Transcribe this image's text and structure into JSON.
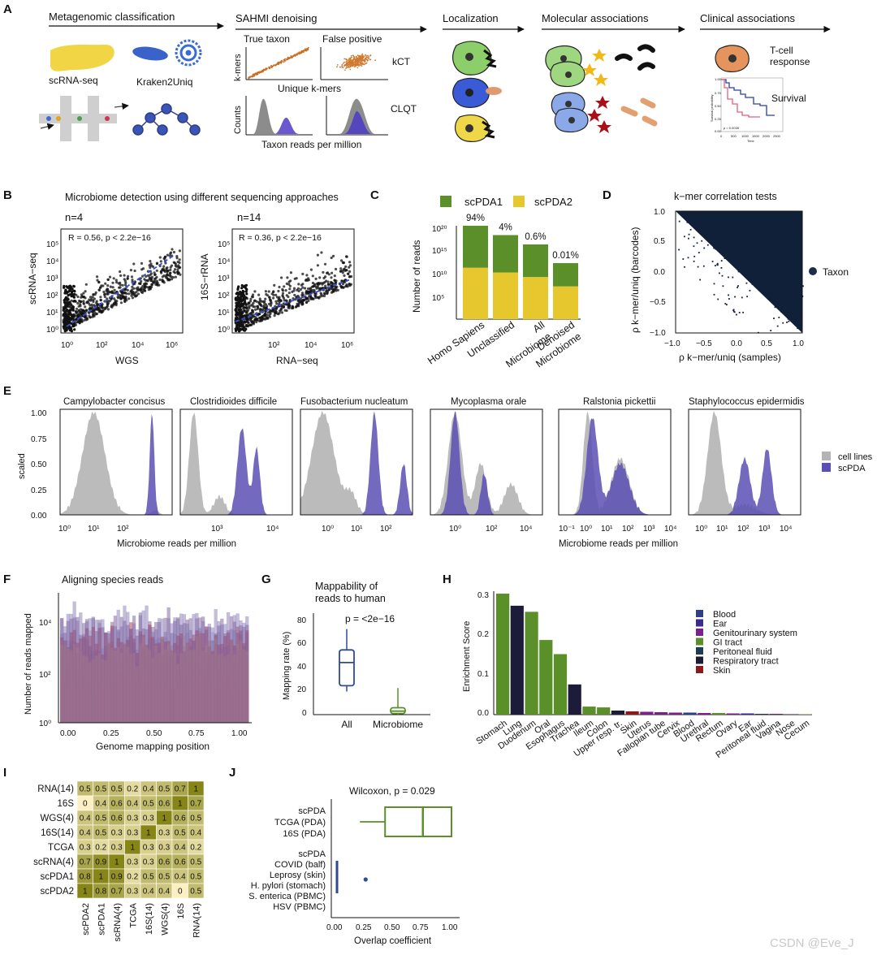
{
  "panel_a": {
    "letter": "A",
    "stages": [
      "Metagenomic classification",
      "SAHMI denoising",
      "Localization",
      "Molecular associations",
      "Clinical associations"
    ],
    "scrnaseq": "scRNA-seq",
    "kraken": "Kraken2Uniq",
    "true_taxon": "True taxon",
    "false_pos": "False positive",
    "kmers_axis": "k-mers",
    "unique_kmers": "Unique k-mers",
    "kct": "kCT",
    "counts_axis": "Counts",
    "taxon_rpm": "Taxon reads per million",
    "clqt": "CLQT",
    "tcell": "T-cell",
    "response": "response",
    "survival": "Survival",
    "km_ylabel": "Survival probability",
    "km_xlabel": "Time",
    "km_pvalue": "p = 0.0039",
    "km_ticks": [
      "0",
      "500",
      "1000",
      "1500",
      "2000",
      "2500"
    ],
    "km_yticks": [
      "0.00",
      "0.25",
      "0.50",
      "0.75",
      "1.00"
    ]
  },
  "panel_b": {
    "letter": "B",
    "title": "Microbiome detection using different sequencing approaches",
    "left": {
      "n": "n=4",
      "stat": "R = 0.56, p < 2.2e−16",
      "xlabel": "WGS",
      "ylabel": "scRNA−seq",
      "xticks": [
        "10⁰",
        "10²",
        "10⁴",
        "10⁶"
      ],
      "yticks": [
        "10⁰",
        "10¹",
        "10²",
        "10³",
        "10⁴",
        "10⁵"
      ]
    },
    "right": {
      "n": "n=14",
      "stat": "R = 0.36, p < 2.2e−16",
      "xlabel": "RNA−seq",
      "ylabel": "16S−rRNA",
      "xticks": [
        "10²",
        "10⁴",
        "10⁶"
      ],
      "yticks": [
        "10⁰",
        "10¹",
        "10²",
        "10³",
        "10⁴",
        "10⁵"
      ]
    }
  },
  "panel_c": {
    "letter": "C",
    "ylabel": "Number of reads",
    "legend": [
      "scPDA1",
      "scPDA2"
    ],
    "yticks": [
      "10⁵",
      "10¹⁰",
      "10¹⁵",
      "10²⁰"
    ]
  },
  "panel_d": {
    "letter": "D",
    "title": "k−mer correlation tests",
    "xlabel": "ρ k−mer/uniq (samples)",
    "ylabel": "ρ k−mer/uniq (barcodes)",
    "legend": "Taxon",
    "ticks": [
      "−1.0",
      "−0.5",
      "0.0",
      "0.5",
      "1.0"
    ]
  },
  "panel_e": {
    "letter": "E",
    "ylabel": "scaled",
    "xlabel": "Microbiome reads per million",
    "species": [
      "Campylobacter concisus",
      "Clostridioides difficile",
      "Fusobacterium nucleatum",
      "Mycoplasma orale",
      "Ralstonia pickettii",
      "Staphylococcus epidermidis"
    ],
    "legend": [
      "cell lines",
      "scPDA"
    ],
    "yticks": [
      "0.00",
      "0.25",
      "0.50",
      "0.75",
      "1.00"
    ],
    "xticks_a": [
      "10⁰",
      "10¹",
      "10²",
      "10³",
      "10⁴"
    ],
    "xticks_b": [
      "10⁰",
      "10²",
      "10⁴"
    ],
    "xticks_c": [
      "10⁻¹",
      "10⁰",
      "10¹",
      "10²",
      "10³",
      "10⁴"
    ]
  },
  "panel_f": {
    "letter": "F",
    "title": "Aligning species reads",
    "xlabel": "Genome mapping position",
    "ylabel": "Number of reads mapped",
    "xticks": [
      "0.00",
      "0.25",
      "0.50",
      "0.75",
      "1.00"
    ],
    "yticks": [
      "10⁰",
      "10²",
      "10⁴"
    ]
  },
  "panel_g": {
    "letter": "G",
    "title_line1": "Mappability of",
    "title_line2": "reads to human",
    "pvalue": "p = <2e−16",
    "ylabel": "Mapping rate (%)",
    "yticks": [
      "0",
      "20",
      "40",
      "60",
      "80"
    ]
  },
  "panel_h": {
    "letter": "H",
    "ylabel": "Enrichment Score",
    "yticks": [
      "0.0",
      "0.1",
      "0.2",
      "0.3"
    ]
  },
  "panel_i": {
    "letter": "I",
    "rows": [
      "RNA(14)",
      "16S",
      "WGS(4)",
      "16S(14)",
      "TCGA",
      "scRNA(4)",
      "scPDA1",
      "scPDA2"
    ],
    "cols": [
      "scPDA2",
      "scPDA1",
      "scRNA(4)",
      "TCGA",
      "16S(14)",
      "WGS(4)",
      "16S",
      "RNA(14)"
    ],
    "values": [
      [
        "0.5",
        "0.5",
        "0.5",
        "0.2",
        "0.4",
        "0.5",
        "0.7",
        "1"
      ],
      [
        "0",
        "0.4",
        "0.6",
        "0.4",
        "0.5",
        "0.6",
        "1",
        "0.7"
      ],
      [
        "0.4",
        "0.5",
        "0.6",
        "0.3",
        "0.3",
        "1",
        "0.6",
        "0.5"
      ],
      [
        "0.4",
        "0.5",
        "0.3",
        "0.3",
        "1",
        "0.3",
        "0.5",
        "0.4"
      ],
      [
        "0.3",
        "0.2",
        "0.3",
        "1",
        "0.3",
        "0.3",
        "0.4",
        "0.2"
      ],
      [
        "0.7",
        "0.9",
        "1",
        "0.3",
        "0.3",
        "0.6",
        "0.6",
        "0.5"
      ],
      [
        "0.8",
        "1",
        "0.9",
        "0.2",
        "0.5",
        "0.5",
        "0.4",
        "0.5"
      ],
      [
        "1",
        "0.8",
        "0.7",
        "0.3",
        "0.4",
        "0.4",
        "0",
        "0.5"
      ]
    ]
  },
  "panel_j": {
    "letter": "J",
    "stat": "Wilcoxon, p = 0.029",
    "xlabel": "Overlap coefficient",
    "group1": [
      "scPDA",
      "TCGA (PDA)",
      "16S (PDA)"
    ],
    "group2": [
      "scPDA",
      "COVID (balf)",
      "Leprosy (skin)",
      "H. pylori (stomach)",
      "S. enterica (PBMC)",
      "HSV (PBMC)"
    ],
    "xticks": [
      "0.00",
      "0.25",
      "0.50",
      "0.75",
      "1.00"
    ]
  },
  "watermark": "CSDN @Eve_J",
  "colors": {
    "green": "#5a8f29",
    "yellow": "#e6c82e",
    "purple": "#5b4fb3",
    "grey": "#b4b4b4",
    "navy": "#1b2c4a",
    "blue": "#2e4a9a"
  },
  "chart_data": [
    {
      "id": "C",
      "type": "bar",
      "stacked": true,
      "log_scale": true,
      "categories": [
        "Homo Sapiens",
        "Unclassified",
        "All Microbiome",
        "Denoised Microbiome"
      ],
      "annotations": [
        "94%",
        "4%",
        "0.6%",
        "0.01%"
      ],
      "series": [
        {
          "name": "scPDA1",
          "values": [
            1e+20,
            1e+18,
            1e+16,
            1000000000000.0
          ]
        },
        {
          "name": "scPDA2",
          "values": [
            100000000000.0,
            10000000000.0,
            1000000000.0,
            10000000.0
          ]
        }
      ],
      "ylabel": "Number of reads",
      "ylim": [
        1,
        1e+20
      ]
    },
    {
      "id": "G",
      "type": "box",
      "categories": [
        "All",
        "Microbiome"
      ],
      "boxes": [
        {
          "min": 20,
          "q1": 25,
          "median": 45,
          "q3": 56,
          "max": 74
        },
        {
          "min": 0,
          "q1": 1,
          "median": 3,
          "q3": 6,
          "max": 23
        }
      ],
      "ylabel": "Mapping rate (%)",
      "ylim": [
        0,
        85
      ]
    },
    {
      "id": "H",
      "type": "bar",
      "categories": [
        "Stomach",
        "Lung",
        "Duodenum",
        "Oral",
        "Esophagus",
        "Trachea",
        "Ileum",
        "Colon",
        "Upper resp. tr.",
        "Skin",
        "Uterus",
        "Fallopian tube",
        "Cervix",
        "Blood",
        "Urethral",
        "Rectum",
        "Ovary",
        "Ear",
        "Peritoneal fluid",
        "Vagina",
        "Nose",
        "Cecum"
      ],
      "values": [
        0.3,
        0.27,
        0.255,
        0.185,
        0.15,
        0.075,
        0.02,
        0.018,
        0.01,
        0.008,
        0.007,
        0.006,
        0.005,
        0.005,
        0.004,
        0.004,
        0.003,
        0.003,
        0.002,
        0.002,
        0.001,
        0.001
      ],
      "categories_group": [
        "GI tract",
        "Respiratory tract",
        "GI tract",
        "GI tract",
        "GI tract",
        "Respiratory tract",
        "GI tract",
        "GI tract",
        "Respiratory tract",
        "Skin",
        "Genitourinary system",
        "Genitourinary system",
        "Genitourinary system",
        "Blood",
        "Genitourinary system",
        "GI tract",
        "Genitourinary system",
        "Ear",
        "Peritoneal fluid",
        "Genitourinary system",
        "Respiratory tract",
        "GI tract"
      ],
      "legend": [
        {
          "name": "Blood",
          "color": "#2c3e8c"
        },
        {
          "name": "Ear",
          "color": "#3b2a8f"
        },
        {
          "name": "Genitourinary system",
          "color": "#7b1f8a"
        },
        {
          "name": "GI tract",
          "color": "#5a8f29"
        },
        {
          "name": "Peritoneal fluid",
          "color": "#1f3b5a"
        },
        {
          "name": "Respiratory tract",
          "color": "#1c1c3a"
        },
        {
          "name": "Skin",
          "color": "#8b1a1a"
        }
      ],
      "ylabel": "Enrichment Score",
      "ylim": [
        0,
        0.3
      ]
    },
    {
      "id": "J",
      "type": "box",
      "orientation": "horizontal",
      "categories": [
        "scPDA / TCGA (PDA) / 16S (PDA)",
        "scPDA / COVID, Leprosy, H. pylori, S. enterica, HSV"
      ],
      "boxes": [
        {
          "min": 0.2,
          "q1": 0.42,
          "median": 0.75,
          "q3": 1.0,
          "max": 1.0
        },
        {
          "min": 0.0,
          "q1": 0.0,
          "median": 0.0,
          "q3": 0.0,
          "max": 0.0,
          "outlier": 0.25
        }
      ],
      "xlabel": "Overlap coefficient",
      "xlim": [
        0,
        1
      ]
    }
  ]
}
